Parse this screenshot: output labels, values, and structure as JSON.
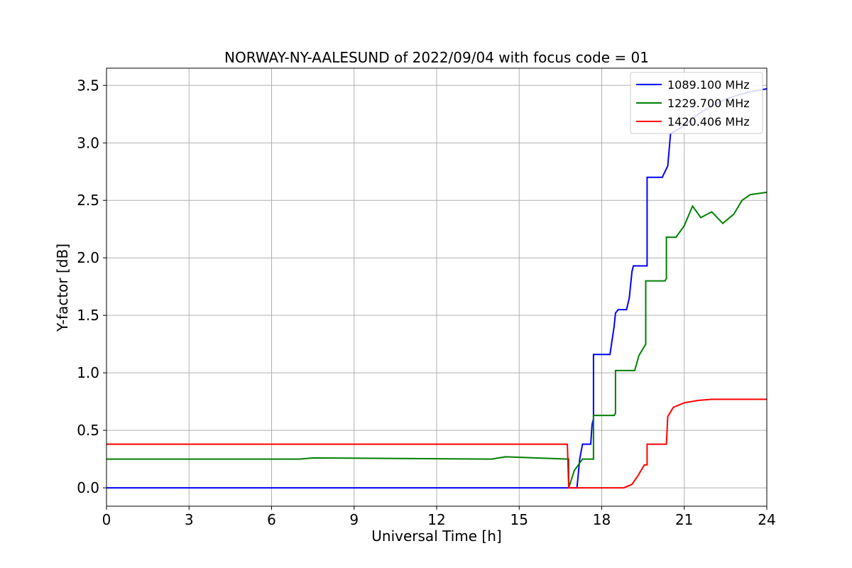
{
  "chart_data": {
    "type": "line",
    "title": "NORWAY-NY-AALESUND of 2022/09/04 with focus code = 01",
    "xlabel": "Universal Time [h]",
    "ylabel": "Y-factor [dB]",
    "xlim": [
      0,
      24
    ],
    "ylim": [
      -0.16,
      3.65
    ],
    "xticks": [
      0,
      3,
      6,
      9,
      12,
      15,
      18,
      21,
      24
    ],
    "yticks": [
      0.0,
      0.5,
      1.0,
      1.5,
      2.0,
      2.5,
      3.0,
      3.5
    ],
    "ytick_labels": [
      "0.0",
      "0.5",
      "1.0",
      "1.5",
      "2.0",
      "2.5",
      "3.0",
      "3.5"
    ],
    "grid": true,
    "legend_position": "top-right",
    "series": [
      {
        "name": "1089.100 MHz",
        "color": "#0000ff",
        "x": [
          0,
          16.8,
          17.1,
          17.2,
          17.3,
          17.6,
          17.65,
          17.7,
          17.7,
          18.1,
          18.3,
          18.45,
          18.5,
          18.6,
          18.9,
          19.0,
          19.1,
          19.15,
          19.6,
          19.65,
          19.65,
          20.2,
          20.3,
          20.4,
          20.5,
          21.0,
          21.5,
          22.0,
          22.5,
          23.0,
          23.5,
          24.0
        ],
        "y": [
          0.0,
          0.0,
          0.0,
          0.25,
          0.38,
          0.38,
          0.55,
          0.6,
          1.16,
          1.16,
          1.16,
          1.4,
          1.52,
          1.55,
          1.55,
          1.65,
          1.88,
          1.93,
          1.93,
          1.93,
          2.7,
          2.7,
          2.75,
          2.8,
          3.08,
          3.15,
          3.25,
          3.32,
          3.38,
          3.42,
          3.45,
          3.47
        ]
      },
      {
        "name": "1229.700 MHz",
        "color": "#008000",
        "x": [
          0,
          7.0,
          7.5,
          14.0,
          14.5,
          16.8,
          16.8,
          17.0,
          17.3,
          17.7,
          17.7,
          18.45,
          18.5,
          18.5,
          19.2,
          19.35,
          19.6,
          19.6,
          20.3,
          20.35,
          20.35,
          20.7,
          21.0,
          21.3,
          21.6,
          22.0,
          22.4,
          22.8,
          23.1,
          23.4,
          24.0
        ],
        "y": [
          0.25,
          0.25,
          0.26,
          0.25,
          0.27,
          0.25,
          0.0,
          0.15,
          0.25,
          0.25,
          0.63,
          0.63,
          0.65,
          1.02,
          1.02,
          1.15,
          1.25,
          1.8,
          1.8,
          1.82,
          2.18,
          2.18,
          2.28,
          2.45,
          2.35,
          2.4,
          2.3,
          2.38,
          2.5,
          2.55,
          2.57
        ]
      },
      {
        "name": "1420.406 MHz",
        "color": "#ff0000",
        "x": [
          0,
          16.75,
          16.8,
          17.5,
          18.8,
          19.1,
          19.3,
          19.55,
          19.65,
          19.65,
          20.35,
          20.4,
          20.6,
          21.0,
          21.5,
          22.0,
          22.5,
          23.0,
          24.0
        ],
        "y": [
          0.38,
          0.38,
          0.0,
          0.0,
          0.0,
          0.03,
          0.1,
          0.2,
          0.2,
          0.38,
          0.38,
          0.62,
          0.7,
          0.74,
          0.76,
          0.77,
          0.77,
          0.77,
          0.77
        ]
      }
    ]
  }
}
